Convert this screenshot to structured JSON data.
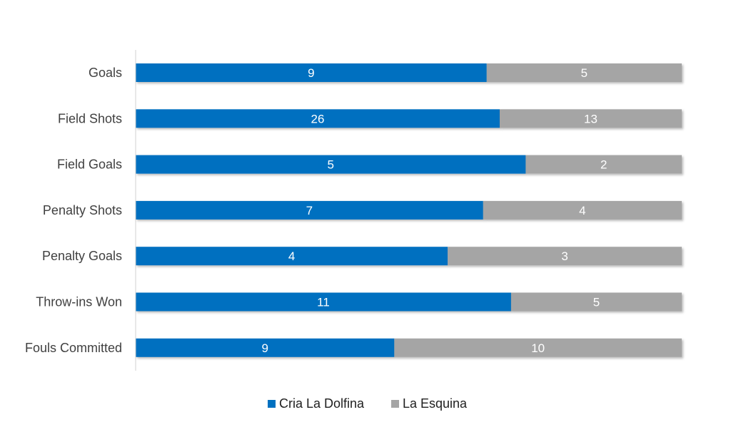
{
  "chart_data": {
    "type": "bar",
    "orientation": "horizontal",
    "stacking": "percent",
    "categories": [
      "Goals",
      "Field Shots",
      "Field Goals",
      "Penalty Shots",
      "Penalty Goals",
      "Throw-ins Won",
      "Fouls Committed"
    ],
    "series": [
      {
        "name": "Cria La Dolfina",
        "color": "#0070C0",
        "values": [
          9,
          26,
          5,
          7,
          4,
          11,
          9
        ]
      },
      {
        "name": "La Esquina",
        "color": "#A5A5A5",
        "values": [
          5,
          13,
          2,
          4,
          3,
          5,
          10
        ]
      }
    ],
    "legend_position": "bottom",
    "grid": false,
    "data_labels": true
  }
}
